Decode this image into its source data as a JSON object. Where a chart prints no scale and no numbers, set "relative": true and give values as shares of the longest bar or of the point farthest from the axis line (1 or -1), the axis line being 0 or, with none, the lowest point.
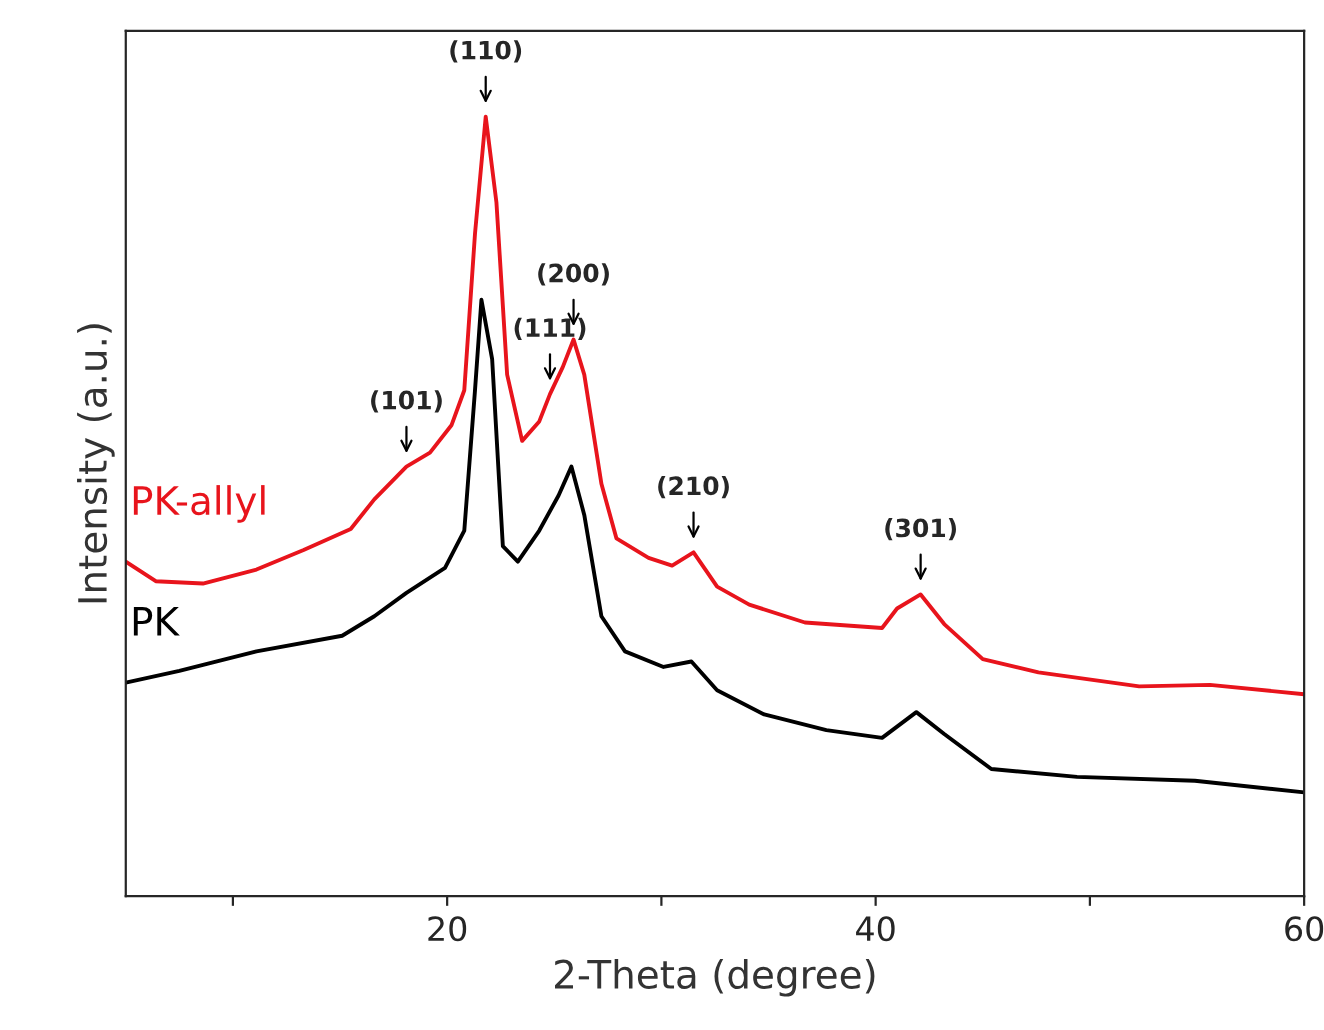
{
  "chart_data": {
    "type": "line",
    "relative": true,
    "xlabel": "2-Theta (degree)",
    "ylabel": "Intensity (a.u.)",
    "xlim": [
      5,
      60
    ],
    "xticks": [
      {
        "value": 10,
        "label": null
      },
      20,
      {
        "value": 30,
        "label": null
      },
      40,
      {
        "value": 50,
        "label": null
      },
      60
    ],
    "tick_labels": "x",
    "grid": false,
    "legend": false,
    "marker": "none",
    "line_style": "solid",
    "series": [
      {
        "name": "PK-allyl",
        "color": "#e8141c",
        "x": [
          5,
          6.4,
          8.6,
          11.1,
          13.3,
          15.5,
          16.6,
          18.1,
          19.2,
          20.2,
          20.8,
          21.3,
          21.8,
          22.3,
          22.8,
          23.5,
          24.3,
          24.8,
          25.4,
          25.9,
          26.4,
          27.2,
          27.9,
          29.4,
          30.5,
          31.5,
          32.6,
          34.1,
          36.7,
          40.3,
          41.0,
          42.1,
          43.2,
          45.0,
          47.6,
          52.3,
          55.6,
          60
        ],
        "values": [
          0.429,
          0.404,
          0.401,
          0.419,
          0.444,
          0.471,
          0.509,
          0.551,
          0.569,
          0.604,
          0.649,
          0.85,
          1.0,
          0.89,
          0.669,
          0.584,
          0.609,
          0.644,
          0.679,
          0.714,
          0.669,
          0.529,
          0.459,
          0.434,
          0.424,
          0.441,
          0.397,
          0.374,
          0.351,
          0.344,
          0.369,
          0.387,
          0.349,
          0.304,
          0.287,
          0.269,
          0.271,
          0.259
        ]
      },
      {
        "name": "PK",
        "color": "#000000",
        "x": [
          5,
          7.5,
          11.1,
          15.1,
          16.6,
          18.1,
          19.9,
          20.8,
          21.3,
          21.6,
          22.1,
          22.6,
          23.3,
          24.3,
          25.2,
          25.8,
          26.4,
          27.2,
          28.3,
          30.1,
          31.4,
          32.6,
          34.8,
          37.7,
          40.3,
          41.9,
          43.2,
          45.4,
          49.4,
          54.9,
          60
        ],
        "values": [
          0.274,
          0.289,
          0.314,
          0.334,
          0.359,
          0.389,
          0.421,
          0.469,
          0.649,
          0.765,
          0.689,
          0.449,
          0.429,
          0.469,
          0.514,
          0.551,
          0.489,
          0.359,
          0.314,
          0.294,
          0.301,
          0.264,
          0.233,
          0.213,
          0.203,
          0.236,
          0.208,
          0.163,
          0.153,
          0.148,
          0.133
        ]
      }
    ],
    "annotations": [
      {
        "text": "(101)",
        "x": 18.1,
        "y": 0.551
      },
      {
        "text": "(110)",
        "x": 21.8,
        "y": 1.0
      },
      {
        "text": "(111)",
        "x": 24.8,
        "y": 0.644
      },
      {
        "text": "(200)",
        "x": 25.9,
        "y": 0.714
      },
      {
        "text": "(210)",
        "x": 31.5,
        "y": 0.441
      },
      {
        "text": "(301)",
        "x": 42.1,
        "y": 0.387
      }
    ]
  }
}
